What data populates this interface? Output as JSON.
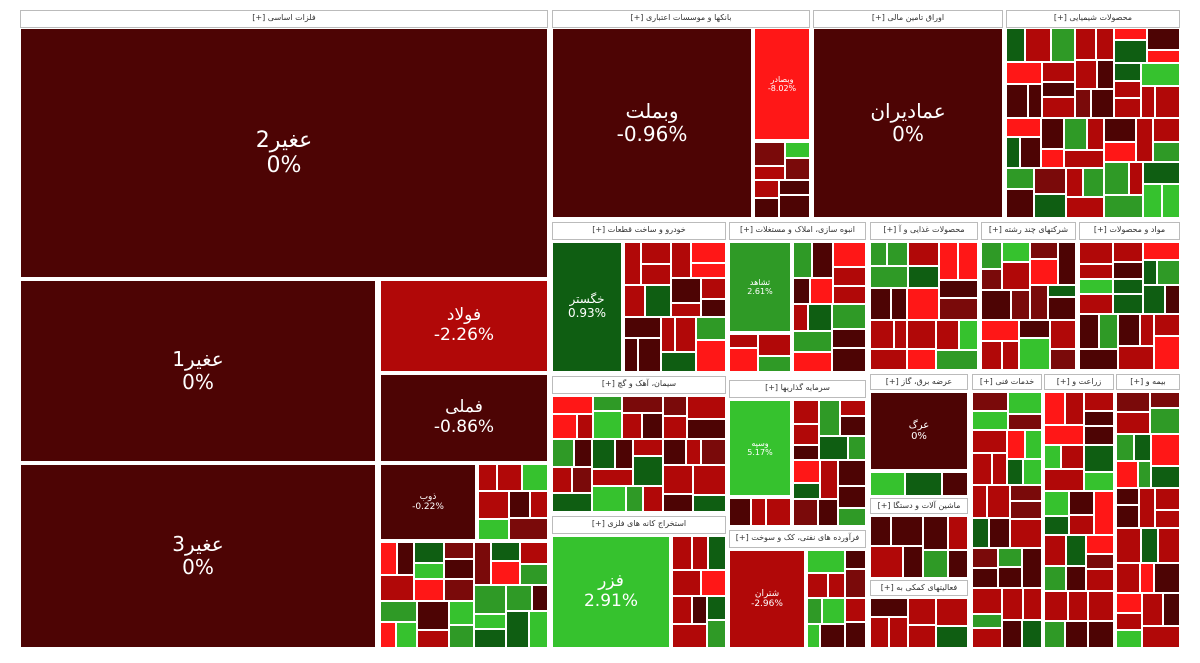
{
  "sectors": [
    {
      "title": "فلزات اساسی [+]",
      "tiles": [
        {
          "name": "عغیر2",
          "change": "0%"
        },
        {
          "name": "عغیر1",
          "change": "0%"
        },
        {
          "name": "عغیر3",
          "change": "0%"
        },
        {
          "name": "فولاد",
          "change": "-2.26%"
        },
        {
          "name": "فملی",
          "change": "-0.86%"
        },
        {
          "name": "ذوب",
          "change": "-0.22%"
        }
      ]
    },
    {
      "title": "بانکها و موسسات اعتباری [+]",
      "tiles": [
        {
          "name": "وبملت",
          "change": "-0.96%"
        },
        {
          "name": "وبصادر",
          "change": "-8.02%"
        }
      ]
    },
    {
      "title": "اوراق تامین مالی [+]",
      "tiles": [
        {
          "name": "عمادیران",
          "change": "0%"
        }
      ]
    },
    {
      "title": "محصولات شیمیایی [+]",
      "tiles": []
    },
    {
      "title": "خودرو و ساخت قطعات [+]",
      "tiles": [
        {
          "name": "خگستر",
          "change": "0.93%"
        }
      ]
    },
    {
      "title": "انبوه سازی، املاک و مستغلات [+]",
      "tiles": [
        {
          "name": "ثشاهد",
          "change": "2.61%"
        }
      ]
    },
    {
      "title": "محصولات غذایی و آ [+]",
      "tiles": []
    },
    {
      "title": "شرکتهای چند رشته [+]",
      "tiles": []
    },
    {
      "title": "مواد و محصولات [+]",
      "tiles": []
    },
    {
      "title": "سیمان، آهک و گچ [+]",
      "tiles": []
    },
    {
      "title": "سرمایه گذاریها [+]",
      "tiles": [
        {
          "name": "وسپه",
          "change": "5.17%"
        }
      ]
    },
    {
      "title": "عرضه برق، گاز [+]",
      "tiles": [
        {
          "name": "عرگ",
          "change": "0%"
        }
      ]
    },
    {
      "title": "خدمات فنی [+]",
      "tiles": []
    },
    {
      "title": "زراعت و [+]",
      "tiles": []
    },
    {
      "title": "بیمه و [+]",
      "tiles": []
    },
    {
      "title": "استخراج کانه های فلزی [+]",
      "tiles": [
        {
          "name": "فزر",
          "change": "2.91%"
        }
      ]
    },
    {
      "title": "فرآورده های نفتی، کک و سوخت [+]",
      "tiles": [
        {
          "name": "شتران",
          "change": "-2.96%"
        }
      ]
    },
    {
      "title": "ماشین آلات و دستگا [+]",
      "tiles": []
    },
    {
      "title": "فعالیتهای کمکی به [+]",
      "tiles": []
    }
  ]
}
